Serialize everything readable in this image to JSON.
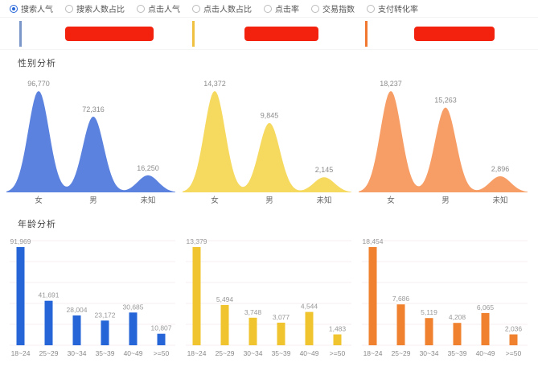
{
  "toolbar": {
    "options": [
      {
        "label": "搜索人气",
        "selected": true
      },
      {
        "label": "搜索人数占比",
        "selected": false
      },
      {
        "label": "点击人气",
        "selected": false
      },
      {
        "label": "点击人数占比",
        "selected": false
      },
      {
        "label": "点击率",
        "selected": false
      },
      {
        "label": "交易指数",
        "selected": false
      },
      {
        "label": "支付转化率",
        "selected": false
      }
    ]
  },
  "legend": {
    "redaction_color": "#F3220F",
    "items": [
      {
        "bar_color": "#7B96C9"
      },
      {
        "bar_color": "#F0C040"
      },
      {
        "bar_color": "#F07830"
      }
    ]
  },
  "sections": {
    "gender_title": "性别分析",
    "age_title": "年龄分析"
  },
  "chart_data": [
    {
      "type": "area",
      "group": "gender",
      "title": "性别分析",
      "categories": [
        "女",
        "男",
        "未知"
      ],
      "values": [
        96770,
        72316,
        16250
      ],
      "color": "#5B82DE",
      "data_labels": true,
      "grid": false
    },
    {
      "type": "area",
      "group": "gender",
      "title": "性别分析",
      "categories": [
        "女",
        "男",
        "未知"
      ],
      "values": [
        14372,
        9845,
        2145
      ],
      "color": "#F6D95F",
      "data_labels": true,
      "grid": false
    },
    {
      "type": "area",
      "group": "gender",
      "title": "性别分析",
      "categories": [
        "女",
        "男",
        "未知"
      ],
      "values": [
        18237,
        15263,
        2896
      ],
      "color": "#F79D66",
      "data_labels": true,
      "grid": false
    },
    {
      "type": "bar",
      "group": "age",
      "title": "年龄分析",
      "categories": [
        "18~24",
        "25~29",
        "30~34",
        "35~39",
        "40~49",
        ">=50"
      ],
      "values": [
        91969,
        41691,
        28004,
        23172,
        30685,
        10807
      ],
      "color": "#2565D8",
      "data_labels": true,
      "grid": true
    },
    {
      "type": "bar",
      "group": "age",
      "title": "年龄分析",
      "categories": [
        "18~24",
        "25~29",
        "30~34",
        "35~39",
        "40~49",
        ">=50"
      ],
      "values": [
        13379,
        5494,
        3748,
        3077,
        4544,
        1483
      ],
      "color": "#EFC42E",
      "data_labels": true,
      "grid": true
    },
    {
      "type": "bar",
      "group": "age",
      "title": "年龄分析",
      "categories": [
        "18~24",
        "25~29",
        "30~34",
        "35~39",
        "40~49",
        ">=50"
      ],
      "values": [
        18454,
        7686,
        5119,
        4208,
        6065,
        2036
      ],
      "color": "#F0812F",
      "data_labels": true,
      "grid": true
    }
  ]
}
